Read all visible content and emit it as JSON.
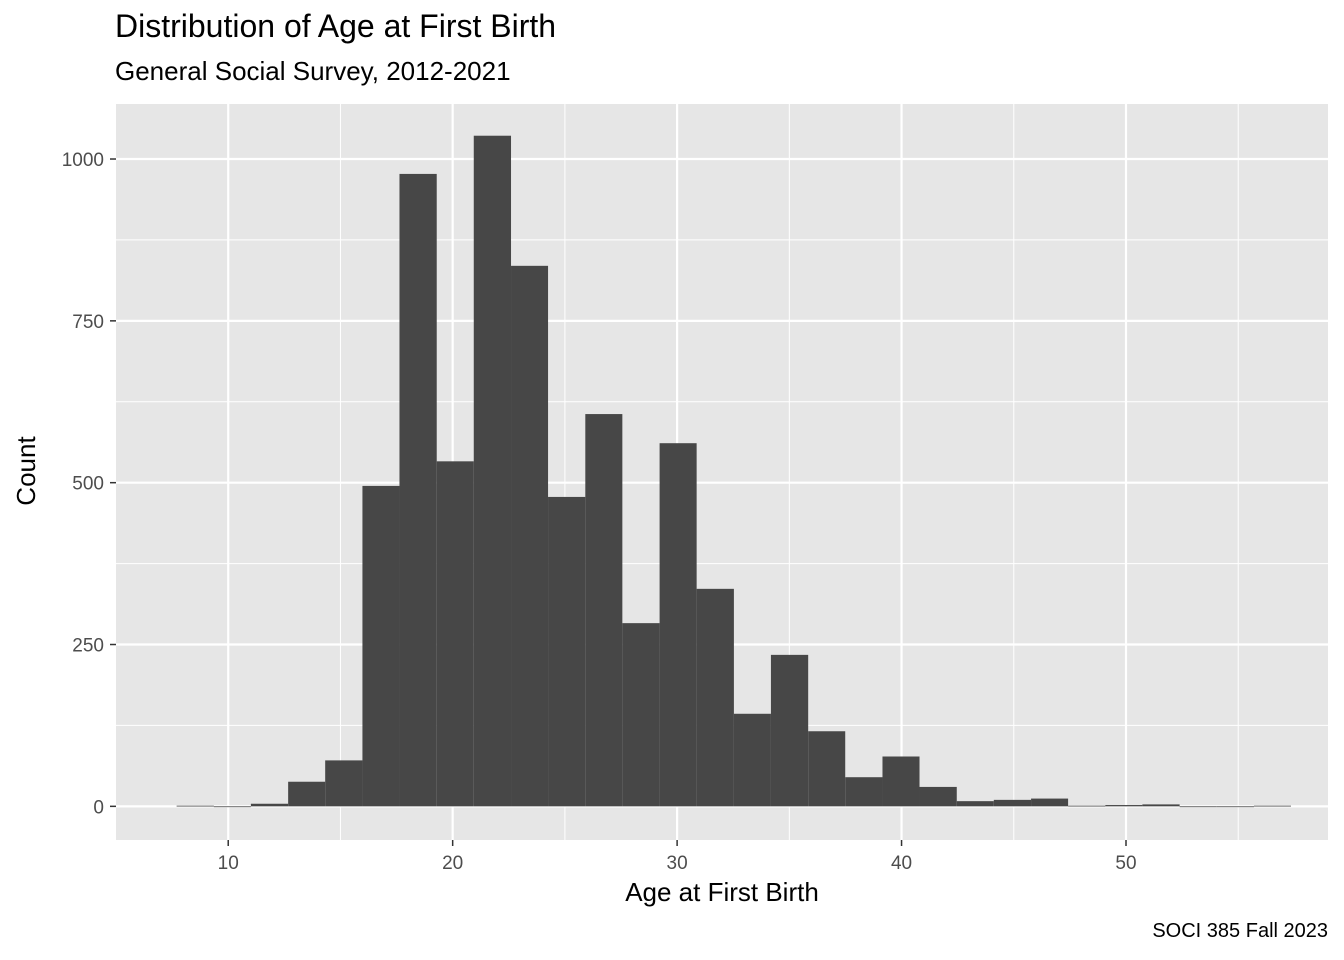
{
  "chart_data": {
    "type": "bar",
    "title": "Distribution of Age at First Birth",
    "subtitle": "General Social Survey, 2012-2021",
    "caption": "SOCI 385 Fall 2023",
    "xlabel": "Age at First Birth",
    "ylabel": "Count",
    "xlim": [
      5,
      59
    ],
    "ylim": [
      -52,
      1085
    ],
    "x_ticks": [
      10,
      20,
      30,
      40,
      50
    ],
    "y_ticks": [
      0,
      250,
      500,
      750,
      1000
    ],
    "grid": true,
    "bin_width": 1.655,
    "bins": [
      {
        "x0": 7.7,
        "x1": 9.36,
        "count": 1
      },
      {
        "x0": 9.36,
        "x1": 11.01,
        "count": 0
      },
      {
        "x0": 11.01,
        "x1": 12.67,
        "count": 4
      },
      {
        "x0": 12.67,
        "x1": 14.32,
        "count": 38
      },
      {
        "x0": 14.32,
        "x1": 15.98,
        "count": 71
      },
      {
        "x0": 15.98,
        "x1": 17.63,
        "count": 495
      },
      {
        "x0": 17.63,
        "x1": 19.29,
        "count": 977
      },
      {
        "x0": 19.29,
        "x1": 20.94,
        "count": 533
      },
      {
        "x0": 20.94,
        "x1": 22.6,
        "count": 1036
      },
      {
        "x0": 22.6,
        "x1": 24.25,
        "count": 835
      },
      {
        "x0": 24.25,
        "x1": 25.91,
        "count": 478
      },
      {
        "x0": 25.91,
        "x1": 27.56,
        "count": 606
      },
      {
        "x0": 27.56,
        "x1": 29.22,
        "count": 283
      },
      {
        "x0": 29.22,
        "x1": 30.87,
        "count": 561
      },
      {
        "x0": 30.87,
        "x1": 32.53,
        "count": 336
      },
      {
        "x0": 32.53,
        "x1": 34.18,
        "count": 143
      },
      {
        "x0": 34.18,
        "x1": 35.84,
        "count": 234
      },
      {
        "x0": 35.84,
        "x1": 37.49,
        "count": 116
      },
      {
        "x0": 37.49,
        "x1": 39.15,
        "count": 45
      },
      {
        "x0": 39.15,
        "x1": 40.8,
        "count": 77
      },
      {
        "x0": 40.8,
        "x1": 42.46,
        "count": 30
      },
      {
        "x0": 42.46,
        "x1": 44.11,
        "count": 8
      },
      {
        "x0": 44.11,
        "x1": 45.77,
        "count": 10
      },
      {
        "x0": 45.77,
        "x1": 47.42,
        "count": 12
      },
      {
        "x0": 47.42,
        "x1": 49.08,
        "count": 1
      },
      {
        "x0": 49.08,
        "x1": 50.73,
        "count": 2
      },
      {
        "x0": 50.73,
        "x1": 52.39,
        "count": 3
      },
      {
        "x0": 52.39,
        "x1": 54.04,
        "count": 0
      },
      {
        "x0": 54.04,
        "x1": 55.7,
        "count": 0
      },
      {
        "x0": 55.7,
        "x1": 57.35,
        "count": 1
      }
    ],
    "colors": {
      "bar": "#474747",
      "panel": "#e6e6e6",
      "grid": "#ffffff",
      "tick_text": "#4d4d4d"
    }
  }
}
